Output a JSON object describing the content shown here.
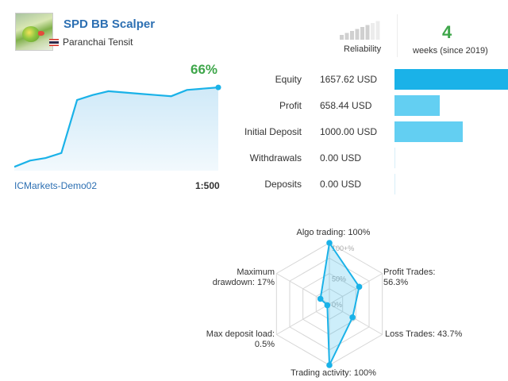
{
  "header": {
    "title": "SPD BB Scalper",
    "author": "Paranchai Tensit",
    "reliability_label": "Reliability",
    "reliability_level": 0.8,
    "weeks": "4",
    "weeks_label": "weeks (since 2019)"
  },
  "growth": {
    "percent": "66%",
    "account": "ICMarkets-Demo02",
    "leverage": "1:500",
    "curve": [
      0.03,
      0.08,
      0.1,
      0.14,
      0.56,
      0.6,
      0.63,
      0.62,
      0.61,
      0.6,
      0.59,
      0.64,
      0.65,
      0.66
    ]
  },
  "metrics": [
    {
      "label": "Equity",
      "value": "1657.62 USD",
      "fraction": 1.0
    },
    {
      "label": "Profit",
      "value": "658.44 USD",
      "fraction": 0.397
    },
    {
      "label": "Initial Deposit",
      "value": "1000.00 USD",
      "fraction": 0.603
    },
    {
      "label": "Withdrawals",
      "value": "0.00 USD",
      "fraction": 0.0
    },
    {
      "label": "Deposits",
      "value": "0.00 USD",
      "fraction": 0.0
    }
  ],
  "radar": {
    "ticks": [
      "100+%",
      "50%",
      "0%"
    ],
    "axes": [
      {
        "label": "Algo trading: 100%",
        "value": 100
      },
      {
        "label": "Profit Trades:\n56.3%",
        "value": 56.3
      },
      {
        "label": "Loss Trades: 43.7%",
        "value": 43.7
      },
      {
        "label": "Trading activity: 100%",
        "value": 100
      },
      {
        "label": "Max deposit load:\n0.5%",
        "value": 0.5
      },
      {
        "label": "Maximum\ndrawdown: 17%",
        "value": 17
      }
    ]
  },
  "colors": {
    "accent_blue": "#1ab2e8",
    "light_bar": "#63cff2",
    "green": "#3ea64a",
    "link_blue": "#2c6fb2"
  }
}
